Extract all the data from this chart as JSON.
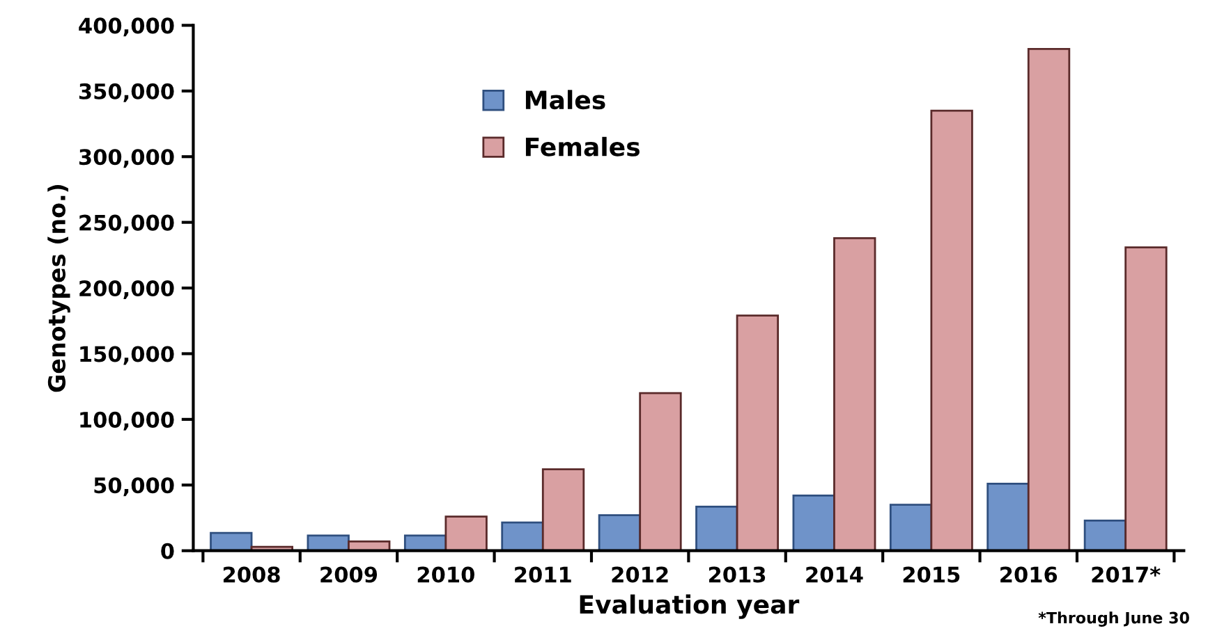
{
  "chart_data": {
    "type": "bar",
    "xlabel": "Evaluation year",
    "ylabel": "Genotypes (no.)",
    "categories": [
      "2008",
      "2009",
      "2010",
      "2011",
      "2012",
      "2013",
      "2014",
      "2015",
      "2016",
      "2017*"
    ],
    "series": [
      {
        "name": "Males",
        "color": "#6f93c9",
        "values": [
          13500,
          11500,
          11500,
          21500,
          27000,
          33500,
          42000,
          35000,
          51000,
          23000
        ]
      },
      {
        "name": "Females",
        "color": "#d9a0a2",
        "values": [
          3000,
          7000,
          26000,
          62000,
          120000,
          179000,
          238000,
          335000,
          382000,
          231000
        ]
      }
    ],
    "ylim": [
      0,
      400000
    ],
    "yticks": [
      {
        "value": 0,
        "label": "0"
      },
      {
        "value": 50000,
        "label": "50,000"
      },
      {
        "value": 100000,
        "label": "100,000"
      },
      {
        "value": 150000,
        "label": "150,000"
      },
      {
        "value": 200000,
        "label": "200,000"
      },
      {
        "value": 250000,
        "label": "250,000"
      },
      {
        "value": 300000,
        "label": "300,000"
      },
      {
        "value": 350000,
        "label": "350,000"
      },
      {
        "value": 400000,
        "label": "400,000"
      }
    ],
    "grid": false,
    "legend": "top left",
    "annotations": [
      "*Through June 30"
    ]
  }
}
